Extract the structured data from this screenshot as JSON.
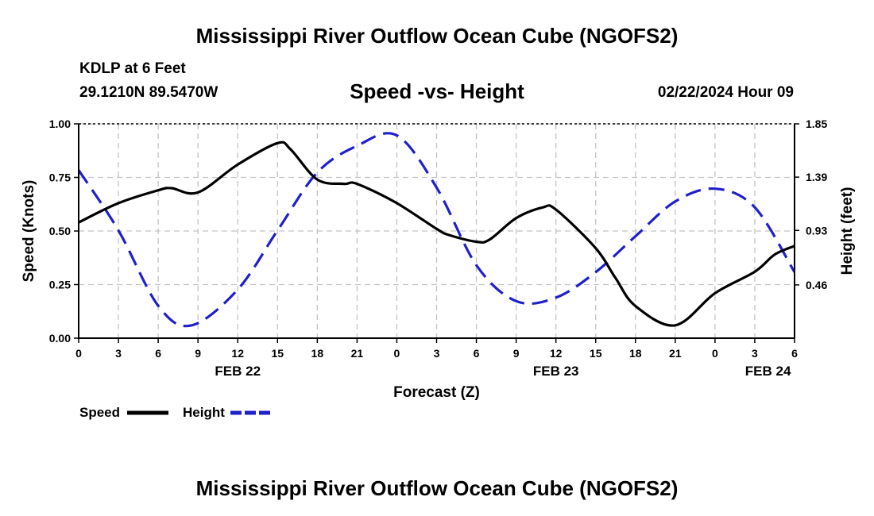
{
  "header": {
    "title": "Mississippi River Outflow Ocean Cube (NGOFS2)",
    "station": "KDLP at 6 Feet",
    "coordinates": "29.1210N  89.5470W",
    "subtitle": "Speed -vs- Height",
    "datetime": "02/22/2024 Hour 09"
  },
  "footer": {
    "title": "Mississippi River Outflow Ocean Cube (NGOFS2)"
  },
  "chart_data": {
    "type": "line",
    "title": "Speed -vs- Height",
    "xlabel": "Forecast (Z)",
    "ylabel": "Speed (Knots)",
    "y2label": "Height (feet)",
    "x_range": [
      0,
      54
    ],
    "xticks": [
      0,
      3,
      6,
      9,
      12,
      15,
      18,
      21,
      24,
      27,
      30,
      33,
      36,
      39,
      42,
      45,
      48,
      51,
      54
    ],
    "xtick_labels": [
      "0",
      "3",
      "6",
      "9",
      "12",
      "15",
      "18",
      "21",
      "0",
      "3",
      "6",
      "9",
      "12",
      "15",
      "18",
      "21",
      "0",
      "3",
      "6"
    ],
    "date_labels": [
      {
        "x": 12,
        "label": "FEB 22"
      },
      {
        "x": 36,
        "label": "FEB 23"
      },
      {
        "x": 52,
        "label": "FEB 24"
      }
    ],
    "ylim": [
      0,
      1.0
    ],
    "yticks": [
      0.0,
      0.25,
      0.5,
      0.75,
      1.0
    ],
    "ytick_labels": [
      "0.00",
      "0.25",
      "0.50",
      "0.75",
      "1.00"
    ],
    "y2lim": [
      0,
      1.85
    ],
    "y2ticks": [
      0.46,
      0.93,
      1.39,
      1.85
    ],
    "y2tick_labels": [
      "0.46",
      "0.93",
      "1.39",
      "1.85"
    ],
    "grid": true,
    "legend": [
      {
        "name": "Speed",
        "color": "#000000",
        "style": "solid"
      },
      {
        "name": "Height",
        "color": "#1f1fcc",
        "style": "dashed"
      }
    ],
    "series": [
      {
        "name": "Speed",
        "axis": "left",
        "color": "#000000",
        "style": "solid",
        "x": [
          0,
          3,
          6,
          7,
          9,
          12,
          15,
          16,
          18,
          20,
          21,
          24,
          27,
          28,
          30,
          31,
          33,
          35,
          36,
          39,
          40.5,
          42,
          45,
          48,
          51,
          52.5,
          54
        ],
        "y": [
          0.54,
          0.63,
          0.69,
          0.7,
          0.68,
          0.81,
          0.91,
          0.88,
          0.74,
          0.72,
          0.72,
          0.63,
          0.51,
          0.48,
          0.45,
          0.46,
          0.56,
          0.61,
          0.6,
          0.42,
          0.28,
          0.15,
          0.06,
          0.21,
          0.31,
          0.39,
          0.43
        ]
      },
      {
        "name": "Height",
        "axis": "right",
        "color": "#1f1fcc",
        "style": "dashed",
        "x": [
          0,
          3,
          6,
          8.5,
          12,
          15,
          18,
          21,
          24,
          27,
          30,
          33,
          36,
          39,
          42,
          45,
          48,
          51,
          54
        ],
        "y": [
          1.45,
          0.93,
          0.28,
          0.11,
          0.42,
          0.93,
          1.43,
          1.66,
          1.75,
          1.3,
          0.63,
          0.32,
          0.35,
          0.57,
          0.88,
          1.18,
          1.29,
          1.13,
          0.57
        ]
      }
    ]
  }
}
